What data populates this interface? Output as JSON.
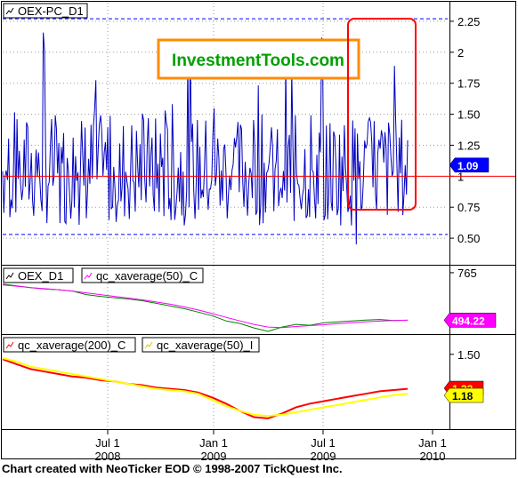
{
  "footer": "Chart created with NeoTicker EOD © 1998-2007 TickQuest Inc.",
  "watermark": "InvestmentTools.com",
  "colors": {
    "background": "#ffffff",
    "pc_line": "#0000c0",
    "oex_line": "#008000",
    "xavg50_close": "#ff00ff",
    "xavg200_close": "#ff0000",
    "xavg50_index": "#ffff00",
    "reference_line": "#ff0000",
    "threshold_line": "#0000ff",
    "watermark_border": "#ff8c00",
    "watermark_text": "#00a000",
    "highlight_box": "#ff0000"
  },
  "chart_data": [
    {
      "type": "line",
      "legend": [
        "OEX-PC_D1"
      ],
      "ylim": [
        0.3,
        2.4
      ],
      "yticks": [
        0.5,
        0.75,
        1,
        1.25,
        1.5,
        1.75,
        2,
        2.25
      ],
      "ytick_labels": [
        "0.50",
        "0.75",
        "1",
        "1.25",
        "1.50",
        "1.75",
        "2",
        "2.25"
      ],
      "last_value": 1.09,
      "last_value_label": "1.09",
      "reference_line": 1.0,
      "threshold_lines": [
        0.53,
        2.27
      ],
      "series": [
        {
          "name": "OEX-PC_D1",
          "color": "#0000c0",
          "seed": 7,
          "min": 0.45,
          "max": 2.2
        }
      ]
    },
    {
      "type": "line",
      "legend": [
        "OEX_D1",
        "qc_xaverage(50)_C"
      ],
      "ylim": [
        420,
        800
      ],
      "yticks": [
        765
      ],
      "ytick_labels": [
        "765"
      ],
      "last_value_label": "494.22",
      "series": [
        {
          "name": "OEX_D1",
          "color": "#008000",
          "values": [
            700,
            690,
            680,
            672,
            668,
            660,
            640,
            630,
            622,
            615,
            605,
            590,
            575,
            560,
            540,
            520,
            490,
            475,
            450,
            430,
            455,
            470,
            465,
            480,
            485,
            490,
            495,
            498,
            492,
            494
          ]
        },
        {
          "name": "qc_xaverage(50)_C",
          "color": "#ff00ff",
          "values": [
            695,
            688,
            680,
            674,
            668,
            660,
            650,
            640,
            630,
            620,
            610,
            598,
            585,
            570,
            552,
            532,
            510,
            490,
            470,
            455,
            452,
            458,
            463,
            468,
            474,
            480,
            485,
            489,
            492,
            494
          ]
        }
      ]
    },
    {
      "type": "line",
      "legend": [
        "qc_xaverage(200)_C",
        "qc_xaverage(50)_I"
      ],
      "ylim": [
        0.9,
        1.65
      ],
      "yticks": [
        1.5
      ],
      "ytick_labels": [
        "1.50"
      ],
      "last_value_labels": [
        "1.22",
        "1.18"
      ],
      "series": [
        {
          "name": "qc_xaverage(200)_C",
          "color": "#ff0000",
          "values": [
            1.46,
            1.42,
            1.38,
            1.36,
            1.34,
            1.32,
            1.31,
            1.29,
            1.28,
            1.26,
            1.25,
            1.23,
            1.22,
            1.21,
            1.19,
            1.15,
            1.1,
            1.04,
            0.99,
            0.98,
            1.02,
            1.07,
            1.1,
            1.12,
            1.14,
            1.16,
            1.18,
            1.2,
            1.21,
            1.22
          ]
        },
        {
          "name": "qc_xaverage(50)_I",
          "color": "#ffff00",
          "values": [
            1.47,
            1.44,
            1.4,
            1.38,
            1.36,
            1.34,
            1.32,
            1.3,
            1.28,
            1.26,
            1.24,
            1.22,
            1.21,
            1.2,
            1.18,
            1.13,
            1.08,
            1.04,
            1.01,
            1.0,
            1.01,
            1.03,
            1.05,
            1.07,
            1.09,
            1.11,
            1.13,
            1.15,
            1.17,
            1.18
          ]
        }
      ]
    }
  ],
  "x_axis": {
    "ticks": [
      {
        "label": "Jul 1",
        "year": "2008"
      },
      {
        "label": "Jan 1",
        "year": "2009"
      },
      {
        "label": "Jul 1",
        "year": "2009"
      },
      {
        "label": "Jan 1",
        "year": "2010"
      }
    ]
  }
}
